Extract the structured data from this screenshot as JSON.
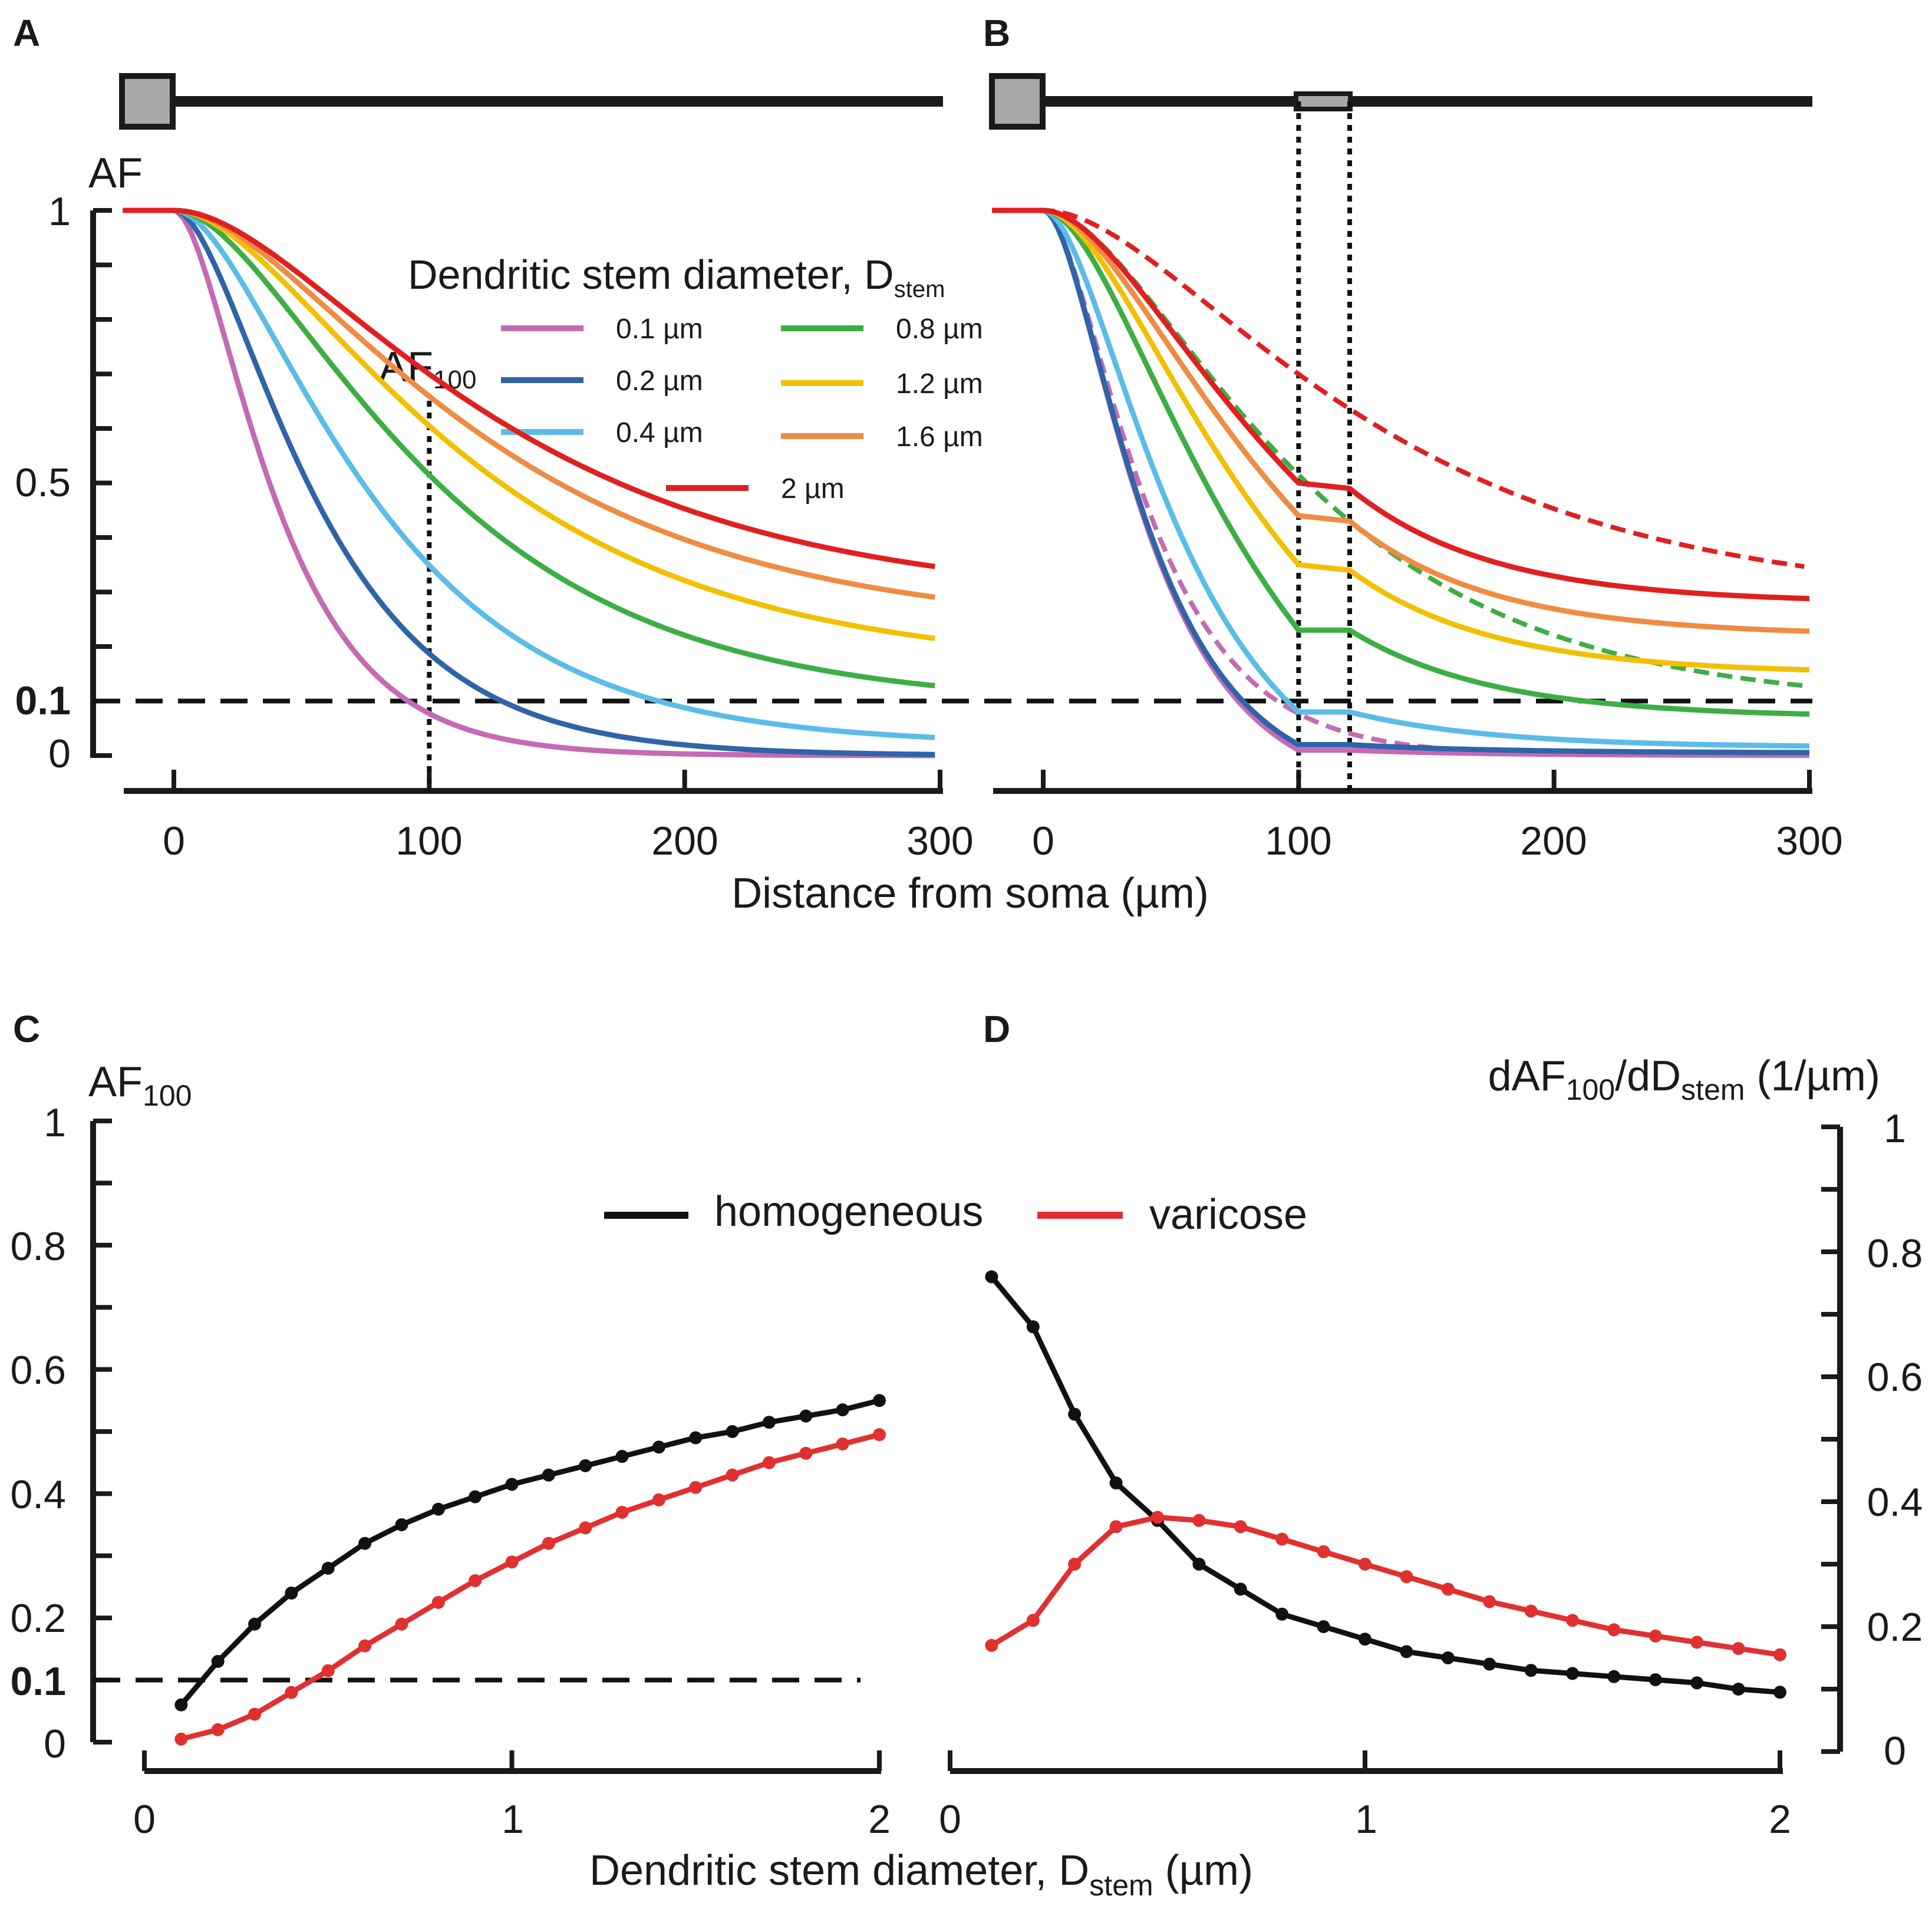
{
  "colors": {
    "d0_1": "#c46ab4",
    "d0_2": "#2e64a8",
    "d0_4": "#5bbce8",
    "d0_8": "#3eae44",
    "d1_2": "#f2c000",
    "d1_6": "#ee8c44",
    "d2": "#e02020",
    "homogeneous": "#111111",
    "varicose": "#e03030",
    "axis": "#1a1a1a",
    "soma": "#a8a8a8"
  },
  "panels": {
    "A": {
      "letter": "A",
      "ylabel": "AF",
      "af100_label": "AF",
      "af100_sub": "100"
    },
    "B": {
      "letter": "B"
    },
    "C": {
      "letter": "C",
      "ylabel": "AF",
      "ylabel_sub": "100"
    },
    "D": {
      "letter": "D",
      "ylabel_a": "dAF",
      "ylabel_sub1": "100",
      "ylabel_b": "/dD",
      "ylabel_sub2": "stem",
      "ylabel_c": "  (1/µm)"
    }
  },
  "legend_top": {
    "title": "Dendritic stem diameter, D",
    "title_sub": "stem",
    "items": [
      {
        "label": "0.1 µm",
        "color_key": "d0_1"
      },
      {
        "label": "0.2 µm",
        "color_key": "d0_2"
      },
      {
        "label": "0.4 µm",
        "color_key": "d0_4"
      },
      {
        "label": "0.8 µm",
        "color_key": "d0_8"
      },
      {
        "label": "1.2 µm",
        "color_key": "d1_2"
      },
      {
        "label": "1.6 µm",
        "color_key": "d1_6"
      },
      {
        "label": "2 µm",
        "color_key": "d2"
      }
    ]
  },
  "legend_bottom": {
    "homogeneous": "homogeneous",
    "varicose": "varicose"
  },
  "axes": {
    "top_xlabel": "Distance from soma (µm)",
    "bottom_xlabel": "Dendritic stem diameter, D",
    "bottom_xlabel_sub": "stem",
    "bottom_xlabel_unit": " (µm)",
    "top_y_ticks": [
      "1",
      "0.5",
      "0.1",
      "0"
    ],
    "top_x_ticks": [
      "0",
      "100",
      "200",
      "300"
    ],
    "bottom_y_ticks": [
      "1",
      "0.8",
      "0.6",
      "0.4",
      "0.2",
      "0.1",
      "0"
    ],
    "bottom_x_ticks": [
      "0",
      "1",
      "2"
    ]
  },
  "chart_data": [
    {
      "panel": "A",
      "type": "line",
      "title": "",
      "xlabel": "Distance from soma (µm)",
      "ylabel": "AF",
      "xlim": [
        -20,
        300
      ],
      "ylim": [
        0,
        1
      ],
      "threshold": 0.1,
      "marker_x": 100,
      "series": [
        {
          "name": "0.1 µm",
          "color_key": "d0_1",
          "k": 30,
          "plateau": 0.0
        },
        {
          "name": "0.2 µm",
          "color_key": "d0_2",
          "k": 42,
          "plateau": 0.0
        },
        {
          "name": "0.4 µm",
          "color_key": "d0_4",
          "k": 58,
          "plateau": 0.02
        },
        {
          "name": "0.8 µm",
          "color_key": "d0_8",
          "k": 75,
          "plateau": 0.09
        },
        {
          "name": "1.2 µm",
          "color_key": "d1_2",
          "k": 85,
          "plateau": 0.16
        },
        {
          "name": "1.6 µm",
          "color_key": "d1_6",
          "k": 90,
          "plateau": 0.23
        },
        {
          "name": "2 µm",
          "color_key": "d2",
          "k": 95,
          "plateau": 0.28
        }
      ]
    },
    {
      "panel": "B",
      "type": "line",
      "xlabel": "Distance from soma (µm)",
      "xlim": [
        -20,
        300
      ],
      "ylim": [
        0,
        1
      ],
      "threshold": 0.1,
      "varicosity_x": [
        100,
        120
      ],
      "series": [
        {
          "name": "0.1 µm",
          "color_key": "d0_1",
          "af100": 0.01,
          "af120": 0.01,
          "plateau": 0.0,
          "k": 30
        },
        {
          "name": "0.2 µm",
          "color_key": "d0_2",
          "af100": 0.02,
          "af120": 0.02,
          "plateau": 0.005,
          "k": 30
        },
        {
          "name": "0.4 µm",
          "color_key": "d0_4",
          "af100": 0.08,
          "af120": 0.08,
          "plateau": 0.015,
          "k": 40
        },
        {
          "name": "0.8 µm",
          "color_key": "d0_8",
          "af100": 0.23,
          "af120": 0.23,
          "plateau": 0.07,
          "k": 60
        },
        {
          "name": "1.2 µm",
          "color_key": "d1_2",
          "af100": 0.35,
          "af120": 0.34,
          "plateau": 0.15,
          "k": 65
        },
        {
          "name": "1.6 µm",
          "color_key": "d1_6",
          "af100": 0.44,
          "af120": 0.43,
          "plateau": 0.22,
          "k": 70
        },
        {
          "name": "2 µm",
          "color_key": "d2",
          "af100": 0.5,
          "af120": 0.49,
          "plateau": 0.28,
          "k": 75
        }
      ],
      "dashed_reference": [
        {
          "name": "0.1 µm homogeneous",
          "color_key": "d0_1",
          "k": 30,
          "plateau": 0.0
        },
        {
          "name": "0.8 µm homogeneous",
          "color_key": "d0_8",
          "k": 75,
          "plateau": 0.09
        },
        {
          "name": "2 µm homogeneous",
          "color_key": "d2",
          "k": 95,
          "plateau": 0.28
        }
      ]
    },
    {
      "panel": "C",
      "type": "line",
      "xlabel": "Dendritic stem diameter, Dstem (µm)",
      "ylabel": "AF100",
      "xlim": [
        0,
        2
      ],
      "ylim": [
        0,
        1
      ],
      "threshold": 0.1,
      "x": [
        0.1,
        0.2,
        0.3,
        0.4,
        0.5,
        0.6,
        0.7,
        0.8,
        0.9,
        1.0,
        1.1,
        1.2,
        1.3,
        1.4,
        1.5,
        1.6,
        1.7,
        1.8,
        1.9,
        2.0
      ],
      "series": [
        {
          "name": "homogeneous",
          "color_key": "homogeneous",
          "values": [
            0.06,
            0.13,
            0.19,
            0.24,
            0.28,
            0.32,
            0.35,
            0.375,
            0.395,
            0.415,
            0.43,
            0.445,
            0.46,
            0.475,
            0.49,
            0.5,
            0.515,
            0.525,
            0.535,
            0.55
          ]
        },
        {
          "name": "varicose",
          "color_key": "varicose",
          "values": [
            0.005,
            0.02,
            0.045,
            0.08,
            0.115,
            0.155,
            0.19,
            0.225,
            0.26,
            0.29,
            0.32,
            0.345,
            0.37,
            0.39,
            0.41,
            0.43,
            0.45,
            0.465,
            0.48,
            0.495
          ]
        }
      ]
    },
    {
      "panel": "D",
      "type": "line",
      "ylabel": "dAF100/dDstem (1/µm)",
      "xlim": [
        0,
        2
      ],
      "ylim": [
        0,
        1
      ],
      "x": [
        0.1,
        0.2,
        0.3,
        0.4,
        0.5,
        0.6,
        0.7,
        0.8,
        0.9,
        1.0,
        1.1,
        1.2,
        1.3,
        1.4,
        1.5,
        1.6,
        1.7,
        1.8,
        1.9,
        2.0
      ],
      "series": [
        {
          "name": "homogeneous",
          "color_key": "homogeneous",
          "values": [
            0.76,
            0.68,
            0.54,
            0.43,
            0.37,
            0.3,
            0.26,
            0.22,
            0.2,
            0.18,
            0.16,
            0.15,
            0.14,
            0.13,
            0.125,
            0.12,
            0.115,
            0.11,
            0.1,
            0.095
          ]
        },
        {
          "name": "varicose",
          "color_key": "varicose",
          "values": [
            0.17,
            0.21,
            0.3,
            0.36,
            0.375,
            0.37,
            0.36,
            0.34,
            0.32,
            0.3,
            0.28,
            0.26,
            0.24,
            0.225,
            0.21,
            0.195,
            0.185,
            0.175,
            0.165,
            0.155
          ]
        }
      ]
    }
  ]
}
